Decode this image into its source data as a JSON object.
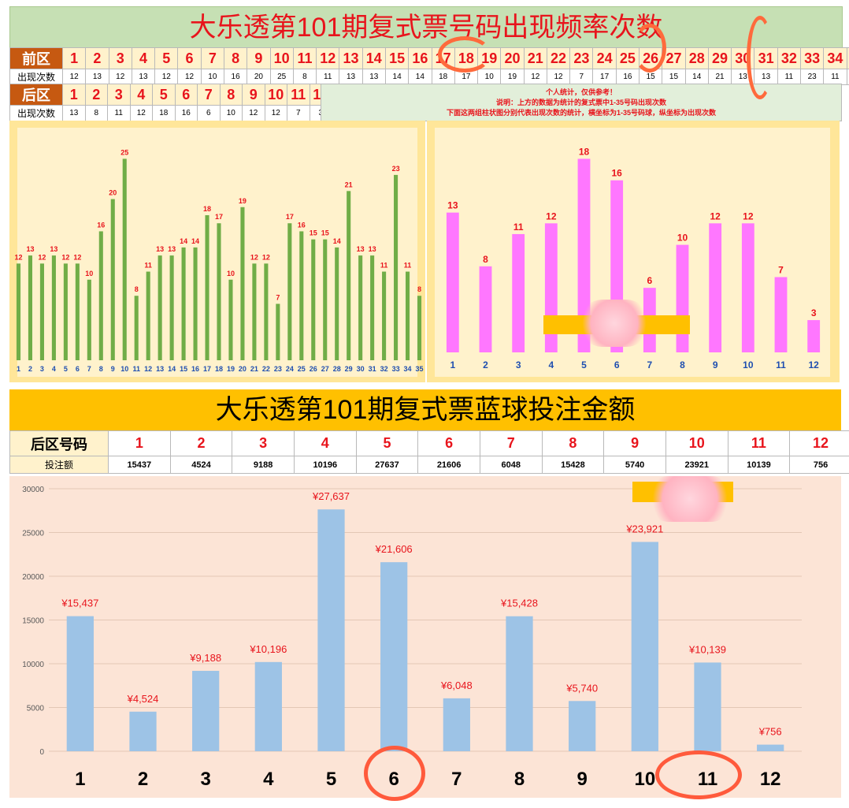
{
  "front_title": "大乐透第101期复式票号码出现频率次数",
  "front_zone_label": "前区",
  "back_zone_label": "后区",
  "count_label": "出现次数",
  "front_numbers": [
    "1",
    "2",
    "3",
    "4",
    "5",
    "6",
    "7",
    "8",
    "9",
    "10",
    "11",
    "12",
    "13",
    "14",
    "15",
    "16",
    "17",
    "18",
    "19",
    "20",
    "21",
    "22",
    "23",
    "24",
    "25",
    "26",
    "27",
    "28",
    "29",
    "30",
    "31",
    "32",
    "33",
    "34",
    "35"
  ],
  "front_counts": [
    12,
    13,
    12,
    13,
    12,
    12,
    10,
    16,
    20,
    25,
    8,
    11,
    13,
    13,
    14,
    14,
    18,
    17,
    10,
    19,
    12,
    12,
    7,
    17,
    16,
    15,
    15,
    14,
    21,
    13,
    13,
    11,
    23,
    11,
    8
  ],
  "back_numbers": [
    "1",
    "2",
    "3",
    "4",
    "5",
    "6",
    "7",
    "8",
    "9",
    "10",
    "11",
    "12"
  ],
  "back_counts": [
    13,
    8,
    11,
    12,
    18,
    16,
    6,
    10,
    12,
    12,
    7,
    3
  ],
  "notes": {
    "line1": "个人统计，仅供参考！",
    "line2": "说明：上方的数据为统计的复式票中1-35号码出现次数",
    "line3": "下面这两组柱状图分别代表出现次数的统计，横坐标为1-35号码球，纵坐标为出现次数"
  },
  "blue_title": "大乐透第101期复式票蓝球投注金额",
  "blue_header_label": "后区号码",
  "blue_amount_label": "投注额",
  "colors": {
    "front_bar": "#70ad47",
    "back_bar": "#ff77ff",
    "blue_bar": "#9dc3e6",
    "label_red": "#e8141c",
    "tick_blue": "#1f4fb0"
  },
  "chart_data": [
    {
      "type": "bar",
      "categories": [
        "1",
        "2",
        "3",
        "4",
        "5",
        "6",
        "7",
        "8",
        "9",
        "10",
        "11",
        "12",
        "13",
        "14",
        "15",
        "16",
        "17",
        "18",
        "19",
        "20",
        "21",
        "22",
        "23",
        "24",
        "25",
        "26",
        "27",
        "28",
        "29",
        "30",
        "31",
        "32",
        "33",
        "34",
        "35"
      ],
      "values": [
        12,
        13,
        12,
        13,
        12,
        12,
        10,
        16,
        20,
        25,
        8,
        11,
        13,
        13,
        14,
        14,
        18,
        17,
        10,
        19,
        12,
        12,
        7,
        17,
        16,
        15,
        15,
        14,
        21,
        13,
        13,
        11,
        23,
        11,
        8
      ],
      "ylim": [
        0,
        27
      ]
    },
    {
      "type": "bar",
      "categories": [
        "1",
        "2",
        "3",
        "4",
        "5",
        "6",
        "7",
        "8",
        "9",
        "10",
        "11",
        "12"
      ],
      "values": [
        13,
        8,
        11,
        12,
        18,
        16,
        6,
        10,
        12,
        12,
        7,
        3
      ],
      "ylim": [
        0,
        19.5
      ]
    },
    {
      "type": "bar",
      "categories": [
        "1",
        "2",
        "3",
        "4",
        "5",
        "6",
        "7",
        "8",
        "9",
        "10",
        "11",
        "12"
      ],
      "values": [
        15437,
        4524,
        9188,
        10196,
        27637,
        21606,
        6048,
        15428,
        5740,
        23921,
        10139,
        756
      ],
      "data_labels": [
        "¥15,437",
        "¥4,524",
        "¥9,188",
        "¥10,196",
        "¥27,637",
        "¥21,606",
        "¥6,048",
        "¥15,428",
        "¥5,740",
        "¥23,921",
        "¥10,139",
        "¥756"
      ],
      "yticks": [
        "0",
        "5000",
        "10000",
        "15000",
        "20000",
        "25000",
        "30000"
      ],
      "ylim": [
        0,
        30000
      ],
      "grid": true
    }
  ]
}
